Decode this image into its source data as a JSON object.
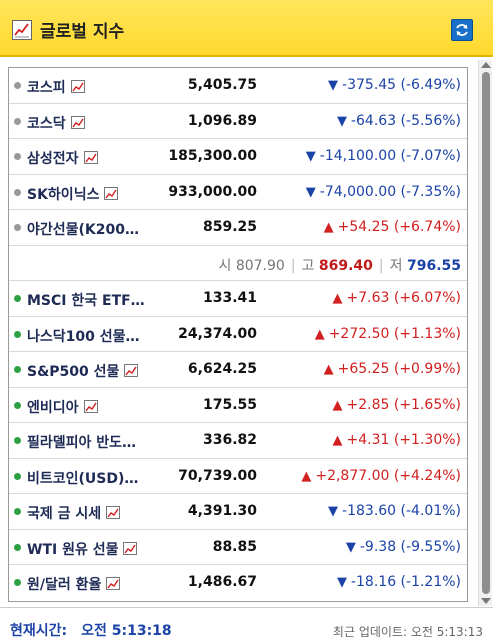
{
  "header": {
    "title": "글로벌 지수",
    "icon": "chart-icon",
    "refresh_icon": "refresh-icon"
  },
  "rows": [
    {
      "name": "코스피",
      "has_chart_icon": true,
      "dot_color": "#999999",
      "price": "5,405.75",
      "dir": "down",
      "change": "-375.45 (-6.49%)"
    },
    {
      "name": "코스닥",
      "has_chart_icon": true,
      "dot_color": "#999999",
      "price": "1,096.89",
      "dir": "down",
      "change": "-64.63 (-5.56%)"
    },
    {
      "name": "삼성전자",
      "has_chart_icon": true,
      "dot_color": "#999999",
      "price": "185,300.00",
      "dir": "down",
      "change": "-14,100.00 (-7.07%)"
    },
    {
      "name": "SK하이닉스",
      "has_chart_icon": true,
      "dot_color": "#999999",
      "price": "933,000.00",
      "dir": "down",
      "change": "-74,000.00 (-7.35%)"
    },
    {
      "name": "야간선물(K200…",
      "has_chart_icon": false,
      "dot_color": "#999999",
      "price": "859.25",
      "dir": "up",
      "change": "+54.25 (+6.74%)"
    },
    {
      "type": "detail",
      "open_label": "시",
      "open": "807.90",
      "high_label": "고",
      "high": "869.40",
      "low_label": "저",
      "low": "796.55"
    },
    {
      "name": "MSCI 한국 ETF…",
      "has_chart_icon": false,
      "dot_color": "#2ea043",
      "price": "133.41",
      "dir": "up",
      "change": "+7.63 (+6.07%)"
    },
    {
      "name": "나스닥100 선물…",
      "has_chart_icon": false,
      "dot_color": "#2ea043",
      "price": "24,374.00",
      "dir": "up",
      "change": "+272.50 (+1.13%)"
    },
    {
      "name": "S&P500 선물",
      "has_chart_icon": true,
      "dot_color": "#2ea043",
      "price": "6,624.25",
      "dir": "up",
      "change": "+65.25 (+0.99%)"
    },
    {
      "name": "엔비디아",
      "has_chart_icon": true,
      "dot_color": "#2ea043",
      "price": "175.55",
      "dir": "up",
      "change": "+2.85 (+1.65%)"
    },
    {
      "name": "필라델피아 반도…",
      "has_chart_icon": false,
      "dot_color": "#2ea043",
      "price": "336.82",
      "dir": "up",
      "change": "+4.31 (+1.30%)"
    },
    {
      "name": "비트코인(USD)…",
      "has_chart_icon": false,
      "dot_color": "#2ea043",
      "price": "70,739.00",
      "dir": "up",
      "change": "+2,877.00 (+4.24%)"
    },
    {
      "name": "국제 금 시세",
      "has_chart_icon": true,
      "dot_color": "#2ea043",
      "price": "4,391.30",
      "dir": "down",
      "change": "-183.60 (-4.01%)"
    },
    {
      "name": "WTI 원유 선물",
      "has_chart_icon": true,
      "dot_color": "#2ea043",
      "price": "88.85",
      "dir": "down",
      "change": "-9.38 (-9.55%)"
    },
    {
      "name": "원/달러 환율",
      "has_chart_icon": true,
      "dot_color": "#2ea043",
      "price": "1,486.67",
      "dir": "down",
      "change": "-18.16 (-1.21%)"
    }
  ],
  "arrows": {
    "up": "▲",
    "down": "▼"
  },
  "footer": {
    "current_time_label": "현재시간:",
    "current_time_value": "오전 5:13:18",
    "updated": "최근 업데이트: 오전 5:13:13"
  }
}
